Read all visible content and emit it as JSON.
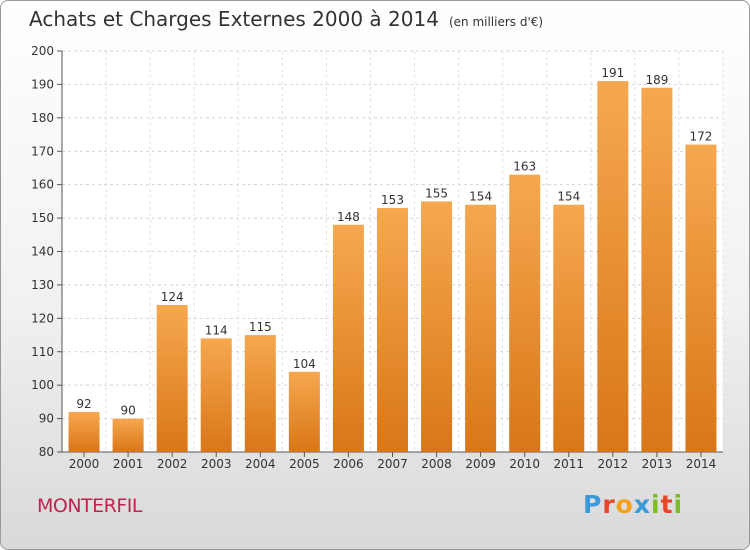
{
  "title": "Achats et Charges Externes 2000 à 2014",
  "unit_note": "(en milliers d'€)",
  "commune": "MONTERFIL",
  "logo": {
    "letters": [
      "P",
      "r",
      "o",
      "x",
      "i",
      "t",
      "i"
    ],
    "colors": [
      "#3b9ad9",
      "#e8462b",
      "#f3a11b",
      "#3b9ad9",
      "#7cbb2a",
      "#e8462b",
      "#7cbb2a"
    ]
  },
  "colors": {
    "bar_top": "#f6a84f",
    "bar_bottom": "#d97618",
    "commune": "#c3224f"
  },
  "chart_data": {
    "type": "bar",
    "categories": [
      "2000",
      "2001",
      "2002",
      "2003",
      "2004",
      "2005",
      "2006",
      "2007",
      "2008",
      "2009",
      "2010",
      "2011",
      "2012",
      "2013",
      "2014"
    ],
    "values": [
      92,
      90,
      124,
      114,
      115,
      104,
      148,
      153,
      155,
      154,
      163,
      154,
      191,
      189,
      172
    ],
    "ylim": [
      80,
      200
    ],
    "yticks": [
      80,
      90,
      100,
      110,
      120,
      130,
      140,
      150,
      160,
      170,
      180,
      190,
      200
    ],
    "grid": true
  }
}
